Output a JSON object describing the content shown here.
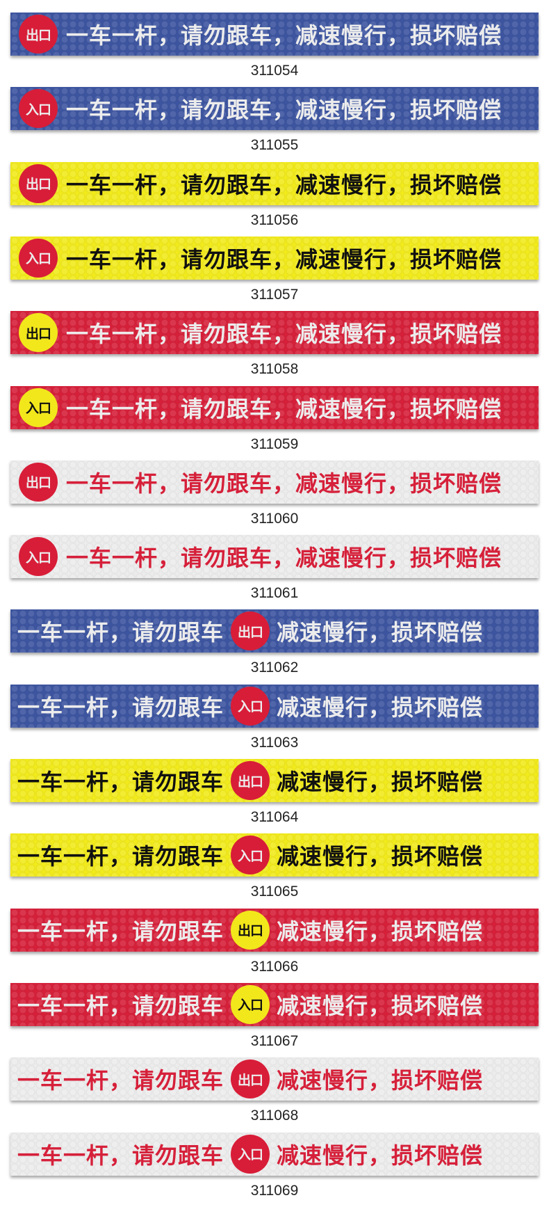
{
  "full_text": "一车一杆，请勿跟车，减速慢行，损坏赔偿",
  "part1": "一车一杆，请勿跟车",
  "part2": "减速慢行，损坏赔偿",
  "exit_label": "出口",
  "entry_label": "入口",
  "colors": {
    "blue": "#3d55a0",
    "yellow": "#f1ea1c",
    "red": "#d6203a",
    "white": "#ececec",
    "black": "#111111",
    "text_red": "#d6203a",
    "circle_red": "#d81d38",
    "circle_yellow": "#f2e71b"
  },
  "banners": [
    {
      "code": "311054",
      "layout": "left",
      "bg": "blue",
      "fg": "white",
      "circle": "circle_red",
      "circle_fg": "white",
      "sign": "exit"
    },
    {
      "code": "311055",
      "layout": "left",
      "bg": "blue",
      "fg": "white",
      "circle": "circle_red",
      "circle_fg": "white",
      "sign": "entry"
    },
    {
      "code": "311056",
      "layout": "left",
      "bg": "yellow",
      "fg": "black",
      "circle": "circle_red",
      "circle_fg": "white",
      "sign": "exit"
    },
    {
      "code": "311057",
      "layout": "left",
      "bg": "yellow",
      "fg": "black",
      "circle": "circle_red",
      "circle_fg": "white",
      "sign": "entry"
    },
    {
      "code": "311058",
      "layout": "left",
      "bg": "red",
      "fg": "white",
      "circle": "circle_yellow",
      "circle_fg": "black",
      "sign": "exit"
    },
    {
      "code": "311059",
      "layout": "left",
      "bg": "red",
      "fg": "white",
      "circle": "circle_yellow",
      "circle_fg": "black",
      "sign": "entry"
    },
    {
      "code": "311060",
      "layout": "left",
      "bg": "white",
      "fg": "text_red",
      "circle": "circle_red",
      "circle_fg": "white",
      "sign": "exit"
    },
    {
      "code": "311061",
      "layout": "left",
      "bg": "white",
      "fg": "text_red",
      "circle": "circle_red",
      "circle_fg": "white",
      "sign": "entry"
    },
    {
      "code": "311062",
      "layout": "center",
      "bg": "blue",
      "fg": "white",
      "circle": "circle_red",
      "circle_fg": "white",
      "sign": "exit"
    },
    {
      "code": "311063",
      "layout": "center",
      "bg": "blue",
      "fg": "white",
      "circle": "circle_red",
      "circle_fg": "white",
      "sign": "entry"
    },
    {
      "code": "311064",
      "layout": "center",
      "bg": "yellow",
      "fg": "black",
      "circle": "circle_red",
      "circle_fg": "white",
      "sign": "exit"
    },
    {
      "code": "311065",
      "layout": "center",
      "bg": "yellow",
      "fg": "black",
      "circle": "circle_red",
      "circle_fg": "white",
      "sign": "entry"
    },
    {
      "code": "311066",
      "layout": "center",
      "bg": "red",
      "fg": "white",
      "circle": "circle_yellow",
      "circle_fg": "black",
      "sign": "exit"
    },
    {
      "code": "311067",
      "layout": "center",
      "bg": "red",
      "fg": "white",
      "circle": "circle_yellow",
      "circle_fg": "black",
      "sign": "entry"
    },
    {
      "code": "311068",
      "layout": "center",
      "bg": "white",
      "fg": "text_red",
      "circle": "circle_red",
      "circle_fg": "white",
      "sign": "exit"
    },
    {
      "code": "311069",
      "layout": "center",
      "bg": "white",
      "fg": "text_red",
      "circle": "circle_red",
      "circle_fg": "white",
      "sign": "entry"
    }
  ]
}
